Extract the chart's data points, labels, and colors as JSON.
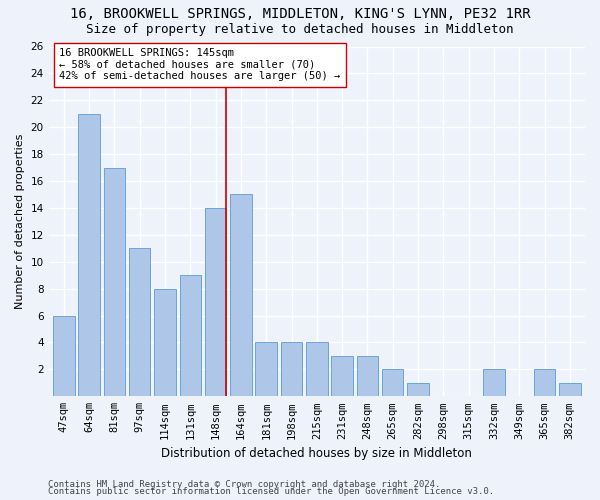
{
  "title1": "16, BROOKWELL SPRINGS, MIDDLETON, KING'S LYNN, PE32 1RR",
  "title2": "Size of property relative to detached houses in Middleton",
  "xlabel": "Distribution of detached houses by size in Middleton",
  "ylabel": "Number of detached properties",
  "categories": [
    "47sqm",
    "64sqm",
    "81sqm",
    "97sqm",
    "114sqm",
    "131sqm",
    "148sqm",
    "164sqm",
    "181sqm",
    "198sqm",
    "215sqm",
    "231sqm",
    "248sqm",
    "265sqm",
    "282sqm",
    "298sqm",
    "315sqm",
    "332sqm",
    "349sqm",
    "365sqm",
    "382sqm"
  ],
  "values": [
    6,
    21,
    17,
    11,
    8,
    9,
    14,
    15,
    4,
    4,
    4,
    3,
    3,
    2,
    1,
    0,
    0,
    2,
    0,
    2,
    1
  ],
  "bar_color": "#aec6e8",
  "bar_edge_color": "#5b9bd5",
  "vline_x": 6,
  "vline_color": "#cc0000",
  "annotation_text": "16 BROOKWELL SPRINGS: 145sqm\n← 58% of detached houses are smaller (70)\n42% of semi-detached houses are larger (50) →",
  "annotation_box_color": "#ffffff",
  "annotation_box_edge": "#cc0000",
  "ylim": [
    0,
    26
  ],
  "yticks": [
    0,
    2,
    4,
    6,
    8,
    10,
    12,
    14,
    16,
    18,
    20,
    22,
    24,
    26
  ],
  "footer1": "Contains HM Land Registry data © Crown copyright and database right 2024.",
  "footer2": "Contains public sector information licensed under the Open Government Licence v3.0.",
  "bg_color": "#eef2fb",
  "grid_color": "#ffffff",
  "title_fontsize": 10,
  "subtitle_fontsize": 9,
  "xlabel_fontsize": 8.5,
  "ylabel_fontsize": 8,
  "tick_fontsize": 7.5,
  "annotation_fontsize": 7.5,
  "footer_fontsize": 6.5
}
